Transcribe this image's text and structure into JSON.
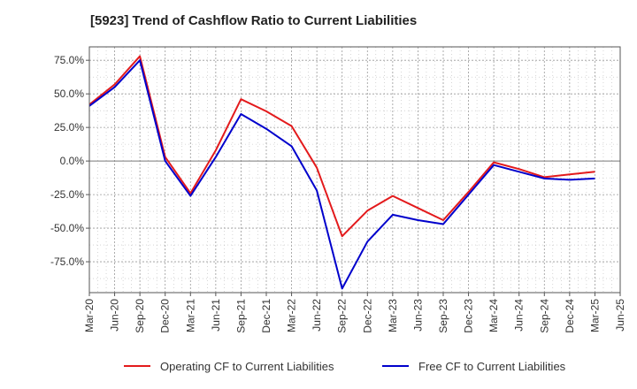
{
  "chart_data": {
    "type": "line",
    "title": "[5923]  Trend of Cashflow Ratio to Current Liabilities",
    "xlabel": "",
    "ylabel": "",
    "x_ticks": [
      "Mar-20",
      "Jun-20",
      "Sep-20",
      "Dec-20",
      "Mar-21",
      "Jun-21",
      "Sep-21",
      "Dec-21",
      "Mar-22",
      "Jun-22",
      "Sep-22",
      "Dec-22",
      "Mar-23",
      "Jun-23",
      "Sep-23",
      "Dec-23",
      "Mar-24",
      "Jun-24",
      "Sep-24",
      "Dec-24",
      "Mar-25",
      "Jun-25"
    ],
    "y_ticks": [
      75,
      50,
      25,
      0,
      -25,
      -50,
      -75
    ],
    "y_tick_labels": [
      "75.0%",
      "50.0%",
      "25.0%",
      "0.0%",
      "-25.0%",
      "-50.0%",
      "-75.0%"
    ],
    "ylim": [
      -98,
      85
    ],
    "grid": true,
    "legend_position": "bottom",
    "series": [
      {
        "name": "Operating CF to Current Liabilities",
        "color": "#e31a1c",
        "x": [
          "Mar-20",
          "Jun-20",
          "Sep-20",
          "Dec-20",
          "Mar-21",
          "Jun-21",
          "Sep-21",
          "Dec-21",
          "Mar-22",
          "Jun-22",
          "Sep-22",
          "Dec-22",
          "Mar-23",
          "Jun-23",
          "Sep-23",
          "Dec-23",
          "Mar-24",
          "Jun-24",
          "Sep-24",
          "Dec-24",
          "Mar-25"
        ],
        "values": [
          42,
          57,
          78,
          3,
          -24,
          8,
          46,
          37,
          26,
          -5,
          -56,
          -37,
          -26,
          -35,
          -44,
          -23,
          -1,
          -6,
          -12,
          -10,
          -8
        ]
      },
      {
        "name": "Free CF to Current Liabilities",
        "color": "#0000cc",
        "x": [
          "Mar-20",
          "Jun-20",
          "Sep-20",
          "Dec-20",
          "Mar-21",
          "Jun-21",
          "Sep-21",
          "Dec-21",
          "Mar-22",
          "Jun-22",
          "Sep-22",
          "Dec-22",
          "Mar-23",
          "Jun-23",
          "Sep-23",
          "Dec-23",
          "Mar-24",
          "Jun-24",
          "Sep-24",
          "Dec-24",
          "Mar-25"
        ],
        "values": [
          41,
          55,
          75,
          0,
          -26,
          3,
          35,
          24,
          11,
          -22,
          -95,
          -60,
          -40,
          -44,
          -47,
          -25,
          -3,
          -8,
          -13,
          -14,
          -13
        ]
      }
    ]
  }
}
